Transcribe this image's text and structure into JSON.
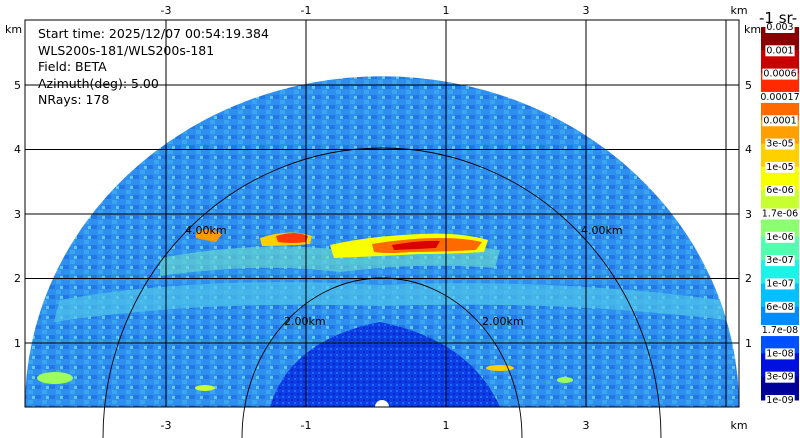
{
  "info": {
    "start_time": "Start time: 2025/12/07 00:54:19.384",
    "instrument": "WLS200s-181/WLS200s-181",
    "field": "Field: BETA",
    "azimuth": "Azimuth(deg): 5.00",
    "nrays": "NRays: 178"
  },
  "axes": {
    "x_ticks": [
      "-3",
      "-1",
      "1",
      "3"
    ],
    "x_tick_values": [
      -3,
      -1,
      1,
      3
    ],
    "y_ticks": [
      "1",
      "2",
      "3",
      "4",
      "5"
    ],
    "y_tick_values": [
      1,
      2,
      3,
      4,
      5
    ],
    "unit": "km",
    "xlim": [
      -4.2,
      4.2
    ],
    "ylim": [
      0,
      5.65
    ]
  },
  "range_rings": [
    {
      "label": "2.00km",
      "radius_km": 2
    },
    {
      "label": "4.00km",
      "radius_km": 4
    }
  ],
  "colorbar": {
    "unit_label": "-1 sr-",
    "top_label": "0.003",
    "labels": [
      "0.001",
      "0.0006",
      "0.00017",
      "0.0001",
      "3e-05",
      "1e-05",
      "6e-06",
      "1.7e-06",
      "1e-06",
      "3e-07",
      "1e-07",
      "6e-08",
      "1.7e-08",
      "1e-08",
      "3e-09",
      "1e-09"
    ],
    "colors": [
      "#8a0000",
      "#c80000",
      "#ff2a00",
      "#ff6a00",
      "#ffa000",
      "#ffd000",
      "#f8ff00",
      "#c8ff30",
      "#8cff70",
      "#50ffb0",
      "#1cf2e8",
      "#00c0ff",
      "#008cff",
      "#0050ff",
      "#0010e0",
      "#00009a"
    ]
  }
}
